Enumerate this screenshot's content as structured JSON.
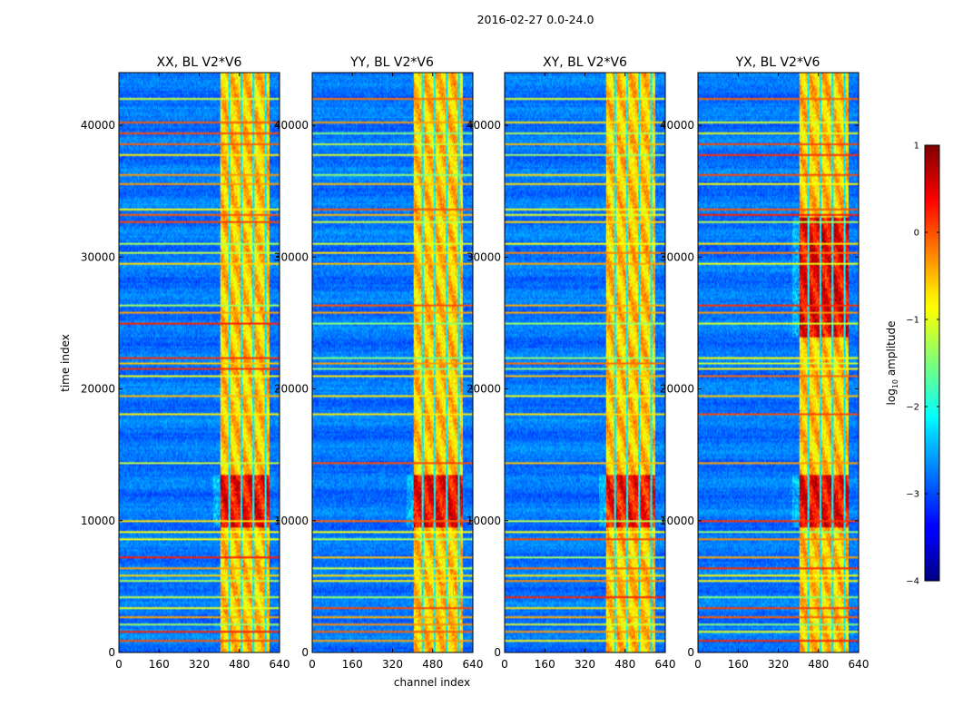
{
  "chart_data": {
    "type": "heatmap",
    "suptitle": "2016-02-27 0.0-24.0",
    "xlabel": "channel index",
    "ylabel": "time index",
    "xlim": [
      0,
      640
    ],
    "ylim": [
      0,
      44000
    ],
    "x_ticks": [
      0,
      160,
      320,
      480,
      640
    ],
    "y_ticks": [
      0,
      10000,
      20000,
      30000,
      40000
    ],
    "colorbar": {
      "label": "log10 amplitude",
      "label_base": "log",
      "label_sub": "10",
      "label_rest": " amplitude",
      "range": [
        -4,
        1
      ],
      "ticks": [
        1,
        0,
        -1,
        -2,
        -3,
        -4
      ],
      "tick_labels": [
        "1",
        "0",
        "−1",
        "−2",
        "−3",
        "−4"
      ],
      "colormap": "jet"
    },
    "panels": [
      {
        "title": "XX, BL V2*V6",
        "signal_band_channels": [
          405,
          600
        ],
        "bright_time_ranges": [
          [
            9500,
            13500
          ]
        ],
        "intensity": 0.85
      },
      {
        "title": "YY, BL V2*V6",
        "signal_band_channels": [
          405,
          600
        ],
        "bright_time_ranges": [
          [
            9500,
            13500
          ]
        ],
        "intensity": 0.85
      },
      {
        "title": "XY, BL V2*V6",
        "signal_band_channels": [
          405,
          600
        ],
        "bright_time_ranges": [
          [
            9500,
            13500
          ]
        ],
        "intensity": 0.75
      },
      {
        "title": "YX, BL V2*V6",
        "signal_band_channels": [
          405,
          600
        ],
        "bright_time_ranges": [
          [
            9500,
            13500
          ],
          [
            24000,
            33000
          ]
        ],
        "intensity": 0.9
      }
    ],
    "rfi_time_rows": [
      800,
      1500,
      2100,
      2600,
      3300,
      4200,
      5400,
      5800,
      6300,
      7200,
      8500,
      9100,
      10000,
      14300,
      18000,
      19500,
      21000,
      21500,
      21900,
      22300,
      25000,
      25800,
      26300,
      29500,
      30300,
      31000,
      32700,
      33200,
      33600,
      35600,
      36300,
      37800,
      38600,
      39400,
      40300,
      42000
    ]
  }
}
